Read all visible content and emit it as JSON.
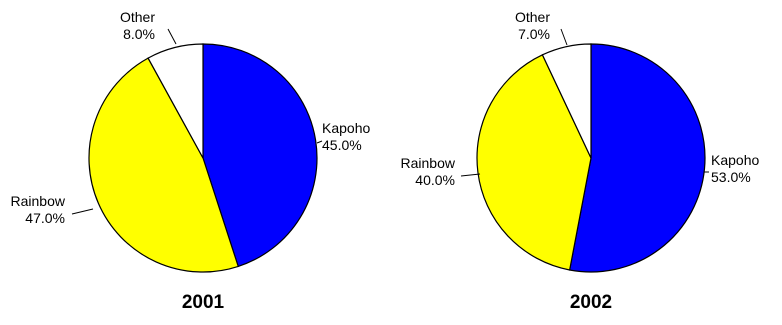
{
  "chart_data": [
    {
      "type": "pie",
      "title": "2001",
      "slices": [
        {
          "label": "Kapoho",
          "value": 45.0,
          "pct": "45.0%",
          "color": "#0000ff"
        },
        {
          "label": "Rainbow",
          "value": 47.0,
          "pct": "47.0%",
          "color": "#ffff00"
        },
        {
          "label": "Other",
          "value": 8.0,
          "pct": "8.0%",
          "color": "#ffffff"
        }
      ]
    },
    {
      "type": "pie",
      "title": "2002",
      "slices": [
        {
          "label": "Kapoho",
          "value": 53.0,
          "pct": "53.0%",
          "color": "#0000ff"
        },
        {
          "label": "Rainbow",
          "value": 40.0,
          "pct": "40.0%",
          "color": "#ffff00"
        },
        {
          "label": "Other",
          "value": 7.0,
          "pct": "7.0%",
          "color": "#ffffff"
        }
      ]
    }
  ]
}
